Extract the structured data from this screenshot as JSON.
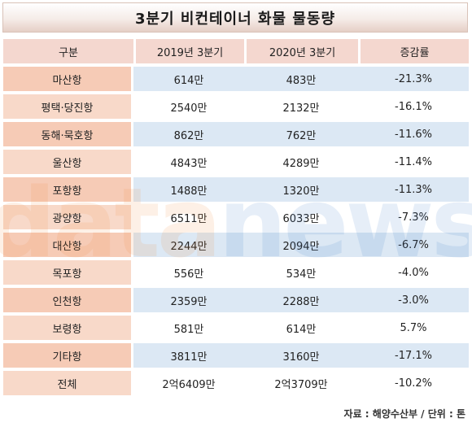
{
  "title": "3분기 비컨테이너 화물 물동량",
  "headers": [
    "구분",
    "2019년 3분기",
    "2020년 3분기",
    "증감률"
  ],
  "rows": [
    {
      "name": "마산항",
      "y2019": "614만",
      "y2020": "483만",
      "change": "-21.3%"
    },
    {
      "name": "평택·당진항",
      "y2019": "2540만",
      "y2020": "2132만",
      "change": "-16.1%"
    },
    {
      "name": "동해·묵호항",
      "y2019": "862만",
      "y2020": "762만",
      "change": "-11.6%"
    },
    {
      "name": "울산항",
      "y2019": "4843만",
      "y2020": "4289만",
      "change": "-11.4%"
    },
    {
      "name": "포항항",
      "y2019": "1488만",
      "y2020": "1320만",
      "change": "-11.3%"
    },
    {
      "name": "광양항",
      "y2019": "6511만",
      "y2020": "6033만",
      "change": "-7.3%"
    },
    {
      "name": "대산항",
      "y2019": "2244만",
      "y2020": "2094만",
      "change": "-6.7%"
    },
    {
      "name": "목포항",
      "y2019": "556만",
      "y2020": "534만",
      "change": "-4.0%"
    },
    {
      "name": "인천항",
      "y2019": "2359만",
      "y2020": "2288만",
      "change": "-3.0%"
    },
    {
      "name": "보령항",
      "y2019": "581만",
      "y2020": "614만",
      "change": "5.7%"
    },
    {
      "name": "기타항",
      "y2019": "3811만",
      "y2020": "3160만",
      "change": "-17.1%"
    },
    {
      "name": "전체",
      "y2019": "2억6409만",
      "y2020": "2억3709만",
      "change": "-10.2%"
    }
  ],
  "source_note": "자료 : 해양수산부 / 단위 : 톤",
  "watermark": "datanews",
  "colors": {
    "header_bg": "#f4d7cf",
    "name_cell": "#f6cbb6",
    "blue_row": "#dce8f4",
    "watermark_orange": "#f08a3c",
    "watermark_blue": "#3b78c8"
  }
}
